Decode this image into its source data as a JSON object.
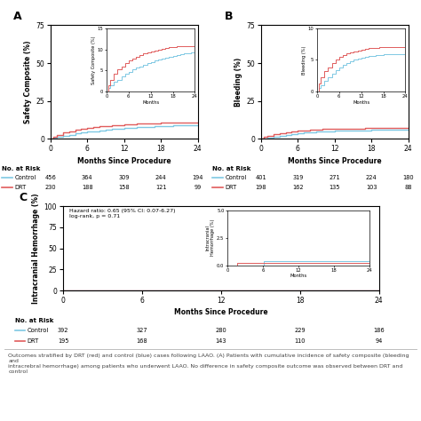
{
  "chart_data": [
    {
      "type": "step",
      "title": "A",
      "xlabel": "Months Since Procedure",
      "ylabel": "Safety Composite (%)",
      "xlim": [
        0,
        24
      ],
      "xticks": [
        0,
        6,
        12,
        18,
        24
      ],
      "ylim": [
        0,
        75
      ],
      "yticks": [
        0,
        25,
        50,
        75
      ],
      "risk_table_title": "No. at Risk",
      "series": [
        {
          "name": "Control",
          "color": "#7ec8e3",
          "x": [
            0,
            0.5,
            1,
            2,
            3,
            4,
            5,
            6,
            7,
            8,
            9,
            10,
            11,
            12,
            13,
            14,
            15,
            16,
            17,
            18,
            19,
            20,
            21,
            22,
            23,
            24
          ],
          "values": [
            0,
            0.8,
            1.5,
            2.2,
            2.8,
            3.5,
            4.1,
            4.7,
            5.2,
            5.6,
            6.0,
            6.4,
            6.7,
            7.0,
            7.3,
            7.6,
            7.8,
            8.0,
            8.2,
            8.5,
            8.7,
            8.9,
            9.0,
            9.1,
            9.2,
            9.3
          ],
          "at_risk": [
            456,
            364,
            309,
            244,
            194
          ]
        },
        {
          "name": "DRT",
          "color": "#e05c5c",
          "x": [
            0,
            0.5,
            1,
            2,
            3,
            4,
            5,
            6,
            7,
            8,
            9,
            10,
            11,
            12,
            13,
            14,
            15,
            16,
            17,
            18,
            19,
            20,
            21,
            22,
            23,
            24
          ],
          "values": [
            0,
            1.5,
            2.8,
            4.2,
            5.2,
            6.0,
            6.8,
            7.3,
            7.8,
            8.2,
            8.6,
            9.0,
            9.3,
            9.6,
            9.8,
            10.0,
            10.2,
            10.4,
            10.5,
            10.6,
            10.7,
            10.7,
            10.7,
            10.7,
            10.7,
            10.7
          ],
          "at_risk": [
            230,
            188,
            158,
            121,
            99
          ]
        }
      ],
      "inset": {
        "xlabel": "Months",
        "ylabel": "Safety Composite (%)",
        "xlim": [
          0,
          24
        ],
        "xticks": [
          0,
          6,
          12,
          18,
          24
        ],
        "ylim": [
          0,
          15
        ],
        "yticks": [
          0,
          5,
          10,
          15
        ]
      }
    },
    {
      "type": "step",
      "title": "B",
      "xlabel": "Months Since Procedure",
      "ylabel": "Bleeding (%)",
      "xlim": [
        0,
        24
      ],
      "xticks": [
        0,
        6,
        12,
        18,
        24
      ],
      "ylim": [
        0,
        75
      ],
      "yticks": [
        0,
        25,
        50,
        75
      ],
      "risk_table_title": "No. at Risk",
      "series": [
        {
          "name": "Control",
          "color": "#7ec8e3",
          "x": [
            0,
            0.5,
            1,
            2,
            3,
            4,
            5,
            6,
            7,
            8,
            9,
            10,
            11,
            12,
            13,
            14,
            15,
            16,
            17,
            18,
            19,
            20,
            21,
            22,
            23,
            24
          ],
          "values": [
            0,
            0.5,
            1.0,
            1.6,
            2.2,
            2.8,
            3.3,
            3.8,
            4.2,
            4.5,
            4.8,
            5.0,
            5.2,
            5.4,
            5.5,
            5.6,
            5.7,
            5.75,
            5.8,
            5.85,
            5.88,
            5.9,
            5.92,
            5.94,
            5.96,
            5.98
          ],
          "at_risk": [
            401,
            319,
            271,
            224,
            180
          ]
        },
        {
          "name": "DRT",
          "color": "#e05c5c",
          "x": [
            0,
            0.5,
            1,
            2,
            3,
            4,
            5,
            6,
            7,
            8,
            9,
            10,
            11,
            12,
            13,
            14,
            15,
            16,
            17,
            18,
            19,
            20,
            21,
            22,
            23,
            24
          ],
          "values": [
            0,
            1.2,
            2.2,
            3.2,
            3.8,
            4.5,
            5.0,
            5.5,
            5.8,
            6.0,
            6.2,
            6.4,
            6.5,
            6.7,
            6.8,
            6.85,
            6.9,
            6.95,
            7.0,
            7.0,
            7.0,
            7.0,
            7.0,
            7.0,
            7.0,
            7.0
          ],
          "at_risk": [
            198,
            162,
            135,
            103,
            88
          ]
        }
      ],
      "inset": {
        "xlabel": "Months",
        "ylabel": "Bleeding (%)",
        "xlim": [
          0,
          24
        ],
        "xticks": [
          0,
          6,
          12,
          18,
          24
        ],
        "ylim": [
          0,
          10
        ],
        "yticks": [
          0,
          5,
          10
        ]
      }
    },
    {
      "type": "step",
      "title": "C",
      "xlabel": "Months Since Procedure",
      "ylabel": "Intracranial Hemorrhage (%)",
      "xlim": [
        0,
        24
      ],
      "xticks": [
        0,
        6,
        12,
        18,
        24
      ],
      "ylim": [
        0,
        100
      ],
      "yticks": [
        0,
        25,
        50,
        75,
        100
      ],
      "annotation": "Hazard ratio: 0.65 (95% CI: 0.07-6.27)\nlog-rank, p = 0.71",
      "risk_table_title": "No. at Risk",
      "series": [
        {
          "name": "Control",
          "color": "#7ec8e3",
          "x": [
            0,
            6,
            6.1,
            24
          ],
          "values": [
            0,
            0,
            0.35,
            0.35
          ],
          "at_risk": [
            392,
            327,
            280,
            229,
            186
          ]
        },
        {
          "name": "DRT",
          "color": "#e05c5c",
          "x": [
            0,
            1.5,
            1.6,
            24
          ],
          "values": [
            0,
            0,
            0.18,
            0.18
          ],
          "at_risk": [
            195,
            168,
            143,
            110,
            94
          ]
        }
      ],
      "inset": {
        "xlabel": "Months",
        "ylabel": "Intracranial\nHemorrhage (%)",
        "xlim": [
          0,
          24
        ],
        "xticks": [
          0,
          6,
          12,
          18,
          24
        ],
        "ylim": [
          0,
          5.0
        ],
        "yticks": [
          0.0,
          2.5,
          5.0
        ]
      }
    }
  ],
  "footnote": "Outcomes stratified by DRT (red) and control (blue) cases following LAAO. (A) Patients with cumulative incidence of safety composite (bleeding and\nintracrebral hemorrhage) among patients who underwent LAAO. No difference in safety composite outcome was observed between DRT and control"
}
